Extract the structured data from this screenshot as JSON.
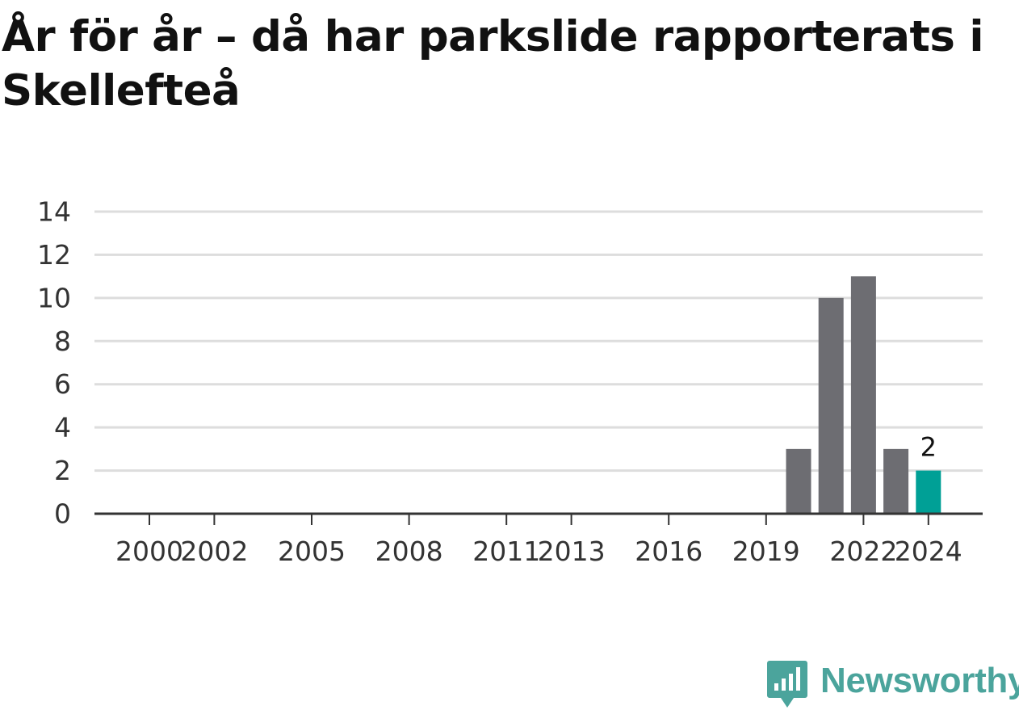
{
  "title": "År för år – då har parkslide rapporterats i Skellefteå",
  "brand": {
    "name": "Newsworthy",
    "icon": "newsworthy-logo-icon",
    "color": "#4ba49c"
  },
  "chart_data": {
    "type": "bar",
    "title": "År för år – då har parkslide rapporterats i Skellefteå",
    "xlabel": "",
    "ylabel": "",
    "ylim": [
      0,
      14
    ],
    "xlim": [
      1998,
      2025
    ],
    "yticks": [
      0,
      2,
      4,
      6,
      8,
      10,
      12,
      14
    ],
    "xticks": [
      "2000",
      "2002",
      "2005",
      "2008",
      "2011",
      "2013",
      "2016",
      "2019",
      "2022",
      "2024"
    ],
    "grid": true,
    "bars": [
      {
        "year": 2020,
        "value": 3
      },
      {
        "year": 2021,
        "value": 10
      },
      {
        "year": 2022,
        "value": 11
      },
      {
        "year": 2023,
        "value": 3
      },
      {
        "year": 2024,
        "value": 2,
        "highlight": true,
        "label": "2"
      }
    ],
    "colors": {
      "bar": "#6d6d72",
      "highlight": "#00a096",
      "grid": "#dddddd",
      "axis": "#333333",
      "text": "#333333"
    }
  }
}
